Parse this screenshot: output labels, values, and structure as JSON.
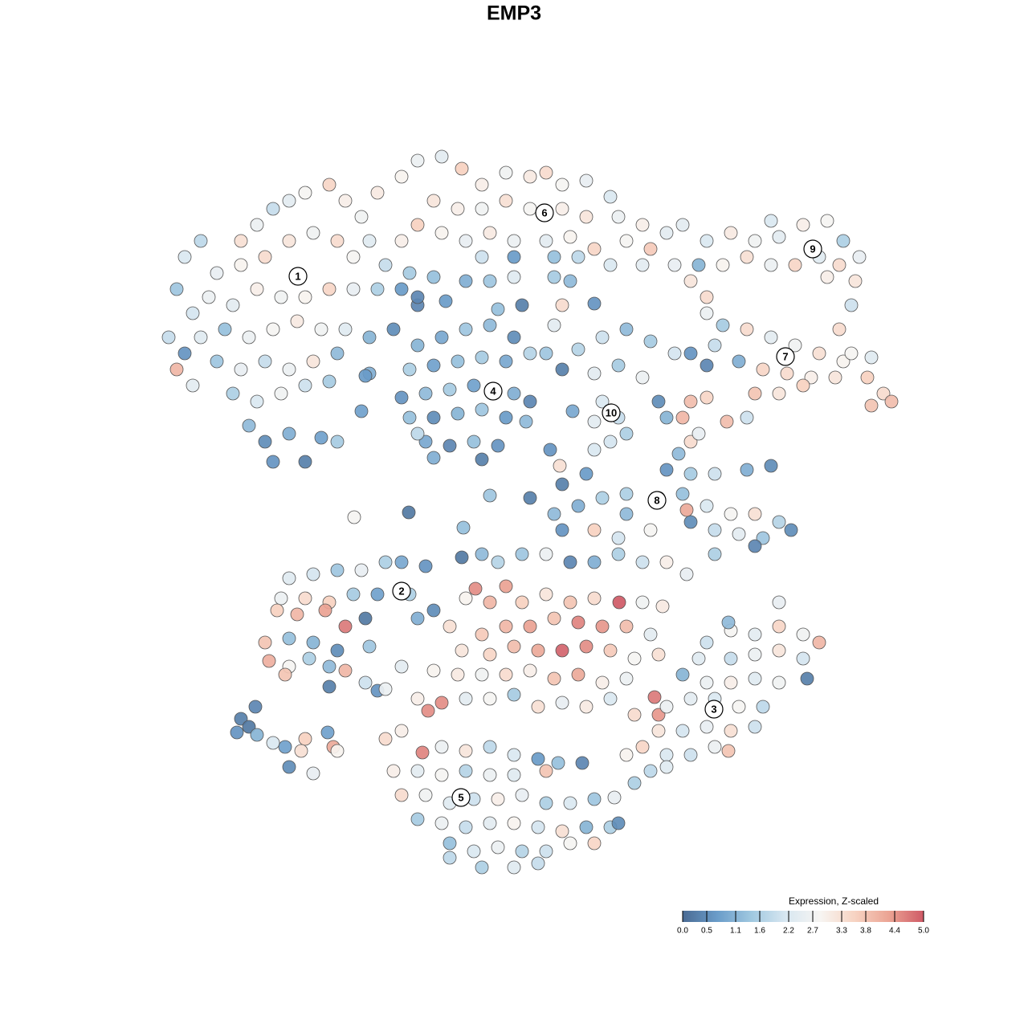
{
  "chart_data": {
    "type": "scatter",
    "title": "EMP3",
    "xlim": [
      0,
      1280
    ],
    "ylim": [
      1280,
      0
    ],
    "x": [
      230,
      250,
      270,
      300,
      320,
      340,
      360,
      380,
      410,
      430,
      450,
      470,
      300,
      330,
      360,
      390,
      420,
      440,
      460,
      480,
      220,
      240,
      260,
      290,
      320,
      350,
      380,
      410,
      440,
      470,
      500,
      520,
      210,
      230,
      250,
      280,
      310,
      340,
      370,
      400,
      430,
      460,
      490,
      220,
      270,
      300,
      330,
      360,
      390,
      420,
      460,
      290,
      320,
      350,
      380,
      410,
      310,
      330,
      360,
      380,
      400,
      420,
      340,
      240,
      500,
      520,
      550,
      575,
      600,
      630,
      660,
      680,
      700,
      730,
      760,
      540,
      570,
      600,
      630,
      660,
      700,
      730,
      770,
      800,
      830,
      520,
      550,
      580,
      610,
      640,
      680,
      710,
      740,
      780,
      810,
      840,
      500,
      600,
      640,
      690,
      720,
      760,
      800,
      860,
      880,
      510,
      540,
      580,
      610,
      640,
      690,
      710,
      520,
      555,
      650,
      620,
      700,
      740,
      690,
      520,
      550,
      580,
      610,
      640,
      510,
      540,
      570,
      600,
      630,
      660,
      500,
      530,
      560,
      590,
      640,
      660,
      510,
      540,
      570,
      600,
      630,
      655,
      530,
      560,
      590,
      620,
      540,
      600,
      455,
      450,
      520,
      680,
      700,
      720,
      750,
      780,
      810,
      840,
      740,
      770,
      800,
      750,
      770,
      740,
      780,
      760,
      713,
      820,
      830,
      880,
      910,
      940,
      970,
      1000,
      1030,
      1050,
      1070,
      900,
      930,
      960,
      990,
      1020,
      1045,
      1065,
      1030,
      870,
      960,
      1060,
      1045,
      850,
      880,
      900,
      930,
      960,
      990,
      1020,
      1050,
      1080,
      1100,
      1110,
      1085,
      1040,
      1010,
      980,
      950,
      920,
      890,
      860,
      880,
      940,
      970,
      1000,
      860,
      880,
      905,
      930,
      850,
      860,
      845,
      870,
      1060,
      1085,
      830,
      860,
      890,
      930,
      960,
      820,
      850,
      880,
      910,
      940,
      970,
      985,
      860,
      890,
      920,
      950,
      890,
      940,
      780,
      855,
      730,
      700,
      685,
      697,
      740,
      610,
      660,
      509,
      441,
      577,
      690,
      720,
      750,
      780,
      810,
      700,
      740,
      770,
      600,
      620,
      650,
      680,
      710,
      740,
      770,
      800,
      830,
      855,
      575,
      530,
      360,
      390,
      420,
      450,
      480,
      500,
      350,
      380,
      410,
      440,
      470,
      510,
      540,
      345,
      370,
      405,
      430,
      455,
      520,
      330,
      360,
      390,
      420,
      460,
      335,
      360,
      385,
      410,
      430,
      355,
      410,
      455,
      470,
      480,
      500,
      300,
      318,
      295,
      310,
      320,
      340,
      355,
      380,
      375,
      360,
      390,
      408,
      415,
      420,
      580,
      592,
      610,
      630,
      650,
      680,
      710,
      740,
      771,
      800,
      825,
      560,
      600,
      630,
      660,
      690,
      720,
      750,
      780,
      810,
      575,
      610,
      640,
      670,
      700,
      730,
      760,
      790,
      820,
      540,
      570,
      600,
      630,
      660,
      690,
      720,
      750,
      780,
      815,
      520,
      550,
      580,
      610,
      640,
      670,
      700,
      730,
      760,
      790,
      820,
      533,
      880,
      910,
      940,
      970,
      1000,
      1020,
      1000,
      970,
      940,
      910,
      870,
      850,
      880,
      910,
      940,
      970,
      1005,
      860,
      890,
      920,
      950,
      830,
      820,
      850,
      880,
      910,
      940,
      800,
      830,
      860,
      890,
      907,
      780,
      810,
      790,
      830,
      970,
      907,
      480,
      500,
      526,
      550,
      580,
      610,
      640,
      670,
      695,
      725,
      490,
      520,
      550,
      580,
      610,
      640,
      680,
      500,
      530,
      560,
      590,
      620,
      650,
      680,
      710,
      740,
      765,
      520,
      550,
      580,
      610,
      640,
      670,
      700,
      730,
      760,
      560,
      590,
      620,
      650,
      680,
      710,
      740,
      600,
      640,
      670,
      770,
      560
    ],
    "y": [
      320,
      300,
      340,
      300,
      280,
      260,
      250,
      240,
      230,
      250,
      270,
      240,
      330,
      320,
      300,
      290,
      300,
      320,
      300,
      330,
      360,
      390,
      370,
      380,
      360,
      370,
      370,
      360,
      360,
      360,
      360,
      380,
      420,
      440,
      420,
      410,
      420,
      410,
      400,
      410,
      410,
      420,
      410,
      460,
      450,
      460,
      450,
      460,
      450,
      440,
      465,
      490,
      500,
      490,
      480,
      475,
      530,
      550,
      540,
      575,
      545,
      550,
      575,
      480,
      220,
      200,
      195,
      210,
      230,
      215,
      220,
      215,
      230,
      225,
      245,
      250,
      260,
      260,
      250,
      260,
      260,
      270,
      270,
      280,
      290,
      280,
      290,
      300,
      290,
      300,
      300,
      295,
      310,
      300,
      310,
      330,
      300,
      320,
      320,
      320,
      320,
      330,
      330,
      350,
      370,
      340,
      345,
      350,
      350,
      345,
      345,
      350,
      370,
      375,
      380,
      385,
      380,
      378,
      405,
      430,
      420,
      410,
      405,
      420,
      460,
      455,
      450,
      445,
      450,
      440,
      495,
      490,
      485,
      480,
      490,
      500,
      520,
      520,
      515,
      510,
      520,
      525,
      550,
      555,
      550,
      555,
      570,
      572,
      468,
      512,
      540,
      440,
      460,
      435,
      420,
      410,
      425,
      440,
      465,
      455,
      470,
      500,
      520,
      525,
      540,
      550,
      512,
      500,
      520,
      300,
      290,
      300,
      295,
      280,
      275,
      300,
      320,
      330,
      320,
      330,
      330,
      320,
      330,
      350,
      345,
      330,
      275,
      380,
      410,
      280,
      390,
      405,
      410,
      420,
      430,
      440,
      450,
      470,
      490,
      500,
      505,
      470,
      470,
      465,
      460,
      450,
      430,
      440,
      455,
      490,
      490,
      480,
      500,
      495,
      525,
      520,
      520,
      550,
      565,
      540,
      440,
      445,
      585,
      590,
      590,
      585,
      580,
      620,
      615,
      630,
      640,
      640,
      650,
      660,
      650,
      660,
      665,
      670,
      690,
      680,
      615,
      635,
      590,
      603,
      560,
      580,
      560,
      617,
      620,
      638,
      644,
      657,
      640,
      630,
      620,
      640,
      660,
      660,
      660,
      670,
      690,
      700,
      690,
      690,
      700,
      700,
      690,
      700,
      700,
      715,
      694,
      705,
      720,
      715,
      710,
      710,
      700,
      700,
      745,
      745,
      750,
      740,
      740,
      740,
      760,
      760,
      765,
      760,
      780,
      770,
      770,
      800,
      795,
      800,
      810,
      805,
      823,
      830,
      820,
      830,
      835,
      840,
      855,
      850,
      860,
      858,
      830,
      895,
      880,
      912,
      905,
      915,
      925,
      930,
      920,
      935,
      955,
      963,
      912,
      930,
      935,
      745,
      733,
      750,
      730,
      750,
      740,
      750,
      745,
      750,
      750,
      755,
      780,
      790,
      780,
      780,
      770,
      775,
      780,
      780,
      790,
      810,
      815,
      805,
      810,
      810,
      805,
      810,
      820,
      815,
      835,
      840,
      840,
      840,
      835,
      845,
      840,
      850,
      845,
      868,
      870,
      875,
      870,
      870,
      865,
      880,
      875,
      880,
      870,
      890,
      890,
      885,
      800,
      785,
      790,
      780,
      790,
      800,
      820,
      810,
      815,
      820,
      820,
      840,
      850,
      850,
      845,
      850,
      845,
      870,
      870,
      880,
      880,
      880,
      910,
      910,
      905,
      910,
      905,
      930,
      940,
      940,
      930,
      935,
      940,
      960,
      975,
      955,
      750,
      775,
      920,
      910,
      937,
      930,
      935,
      930,
      940,
      945,
      950,
      950,
      960,
      960,
      965,
      960,
      965,
      965,
      960,
      990,
      990,
      1000,
      995,
      995,
      990,
      1000,
      1000,
      995,
      993,
      1020,
      1025,
      1030,
      1025,
      1025,
      1030,
      1035,
      1030,
      1030,
      1050,
      1060,
      1055,
      1060,
      1060,
      1050,
      1050,
      1080,
      1080,
      1075,
      1025,
      1068
    ],
    "values": [
      2.2,
      1.8,
      2.5,
      3.3,
      2.6,
      1.9,
      2.4,
      2.8,
      3.5,
      3.0,
      2.7,
      3.1,
      2.9,
      3.4,
      3.2,
      2.7,
      3.4,
      2.8,
      2.3,
      1.9,
      1.4,
      2.1,
      2.6,
      2.4,
      3.0,
      2.7,
      2.9,
      3.5,
      2.5,
      1.6,
      0.7,
      0.4,
      1.9,
      0.6,
      2.3,
      1.3,
      2.6,
      2.8,
      3.1,
      2.7,
      2.3,
      1.1,
      0.5,
      4.0,
      1.4,
      2.5,
      1.9,
      2.6,
      3.2,
      1.2,
      1.0,
      1.6,
      2.2,
      2.7,
      2.0,
      1.5,
      1.2,
      0.5,
      1.0,
      0.3,
      0.8,
      1.5,
      0.6,
      2.4,
      2.9,
      2.6,
      2.4,
      3.6,
      3.0,
      2.7,
      3.1,
      3.4,
      2.8,
      2.5,
      2.2,
      3.2,
      3.0,
      2.7,
      3.3,
      2.8,
      3.0,
      3.2,
      2.6,
      3.0,
      2.4,
      3.6,
      2.9,
      2.5,
      3.1,
      2.6,
      2.4,
      2.9,
      3.5,
      2.8,
      3.7,
      2.5,
      3.0,
      2.0,
      0.7,
      1.3,
      1.8,
      2.2,
      2.4,
      3.2,
      3.4,
      1.5,
      1.3,
      1.0,
      1.4,
      2.3,
      1.5,
      1.2,
      0.4,
      0.7,
      0.3,
      1.3,
      3.4,
      0.6,
      2.4,
      1.1,
      0.9,
      1.4,
      1.2,
      0.5,
      1.6,
      0.8,
      1.3,
      1.5,
      0.9,
      1.7,
      0.6,
      1.2,
      1.5,
      0.8,
      1.0,
      0.4,
      1.3,
      0.5,
      1.1,
      1.4,
      0.7,
      1.2,
      0.9,
      0.4,
      1.3,
      0.6,
      1.0,
      0.3,
      0.7,
      0.8,
      1.8,
      1.4,
      0.3,
      1.7,
      2.0,
      1.2,
      1.5,
      2.1,
      2.4,
      1.5,
      2.6,
      2.2,
      1.9,
      2.4,
      1.6,
      2.1,
      0.9,
      0.5,
      1.1,
      2.2,
      3.1,
      2.7,
      2.4,
      3.0,
      2.8,
      1.6,
      2.5,
      2.9,
      3.3,
      2.6,
      3.5,
      2.3,
      3.4,
      3.2,
      3.0,
      1.1,
      2.2,
      2.0,
      3.4,
      2.4,
      2.6,
      1.5,
      3.4,
      2.4,
      2.7,
      3.3,
      2.9,
      3.6,
      3.4,
      3.9,
      3.8,
      3.2,
      3.0,
      3.4,
      3.5,
      1.0,
      1.9,
      0.6,
      0.4,
      3.8,
      3.2,
      3.6,
      3.9,
      3.5,
      3.9,
      2.0,
      4.0,
      3.4,
      1.2,
      2.5,
      2.8,
      2.3,
      0.6,
      1.5,
      2.0,
      1.0,
      0.5,
      2.7,
      1.3,
      2.2,
      2.8,
      3.3,
      1.7,
      0.5,
      0.5,
      1.9,
      2.4,
      1.4,
      1.6,
      0.4,
      1.6,
      4.2,
      0.7,
      0.3,
      0.6,
      3.3,
      2.2,
      1.4,
      0.3,
      0.2,
      2.8,
      1.3,
      1.2,
      1.0,
      1.6,
      1.2,
      2.8,
      0.6,
      3.6,
      2.1,
      1.2,
      1.7,
      1.4,
      2.6,
      0.4,
      1.0,
      1.6,
      2.0,
      3.0,
      2.5,
      0.2,
      0.6,
      2.3,
      2.1,
      1.4,
      2.5,
      1.6,
      0.9,
      2.6,
      3.4,
      3.6,
      1.5,
      0.8,
      1.6,
      0.5,
      3.6,
      4.0,
      4.3,
      4.7,
      0.2,
      1.0,
      3.8,
      1.3,
      1.1,
      0.5,
      1.4,
      4.1,
      2.8,
      1.6,
      1.2,
      4.0,
      3.8,
      0.3,
      2.0,
      0.6,
      2.6,
      2.4,
      0.3,
      0.4,
      0.6,
      0.2,
      1.1,
      2.2,
      0.8,
      3.6,
      3.3,
      0.5,
      2.5,
      0.8,
      4.2,
      2.9,
      2.9,
      4.5,
      4.0,
      4.3,
      3.6,
      3.2,
      3.8,
      3.4,
      5.0,
      2.7,
      3.1,
      3.3,
      3.7,
      4.0,
      4.3,
      3.8,
      4.6,
      4.4,
      3.9,
      2.4,
      3.2,
      3.5,
      3.9,
      4.2,
      4.9,
      4.5,
      3.7,
      2.8,
      3.3,
      2.9,
      3.1,
      2.7,
      3.4,
      3.0,
      3.8,
      4.2,
      3.0,
      2.6,
      4.7,
      3.0,
      4.5,
      2.4,
      2.8,
      1.5,
      3.3,
      2.5,
      3.1,
      2.2,
      3.4,
      4.4,
      4.5,
      2.0,
      2.8,
      2.4,
      3.5,
      2.7,
      4.0,
      2.1,
      3.2,
      2.6,
      1.9,
      2.3,
      1.1,
      2.6,
      3.0,
      2.3,
      2.7,
      0.3,
      2.4,
      2.2,
      2.8,
      1.8,
      2.6,
      3.2,
      2.1,
      2.5,
      3.3,
      2.0,
      3.5,
      2.2,
      2.0,
      2.6,
      3.8,
      2.9,
      1.8,
      1.6,
      2.3,
      2.5,
      1.2,
      3.4,
      3.0,
      4.6,
      2.6,
      3.2,
      1.8,
      2.2,
      0.7,
      1.3,
      0.4,
      3.0,
      2.4,
      2.8,
      1.7,
      2.6,
      2.3,
      3.8,
      3.4,
      2.7,
      2.3,
      2.0,
      3.0,
      2.5,
      1.6,
      2.2,
      1.4,
      2.5,
      1.5,
      2.6,
      1.9,
      2.4,
      2.9,
      2.1,
      3.3,
      1.1,
      1.6,
      1.3,
      2.2,
      2.6,
      1.7,
      2.0,
      2.8,
      3.5,
      1.6,
      2.3,
      1.9,
      0.5,
      1.8
    ],
    "cluster_labels": [
      {
        "label": "1",
        "x": 371,
        "y": 344
      },
      {
        "label": "2",
        "x": 500,
        "y": 736
      },
      {
        "label": "3",
        "x": 889,
        "y": 883
      },
      {
        "label": "4",
        "x": 614,
        "y": 487
      },
      {
        "label": "5",
        "x": 574,
        "y": 993
      },
      {
        "label": "6",
        "x": 678,
        "y": 265
      },
      {
        "label": "7",
        "x": 978,
        "y": 444
      },
      {
        "label": "8",
        "x": 818,
        "y": 623
      },
      {
        "label": "9",
        "x": 1012,
        "y": 310
      },
      {
        "label": "10",
        "x": 761,
        "y": 514
      }
    ],
    "colorbar": {
      "title": "Expression, Z-scaled",
      "lim": [
        0,
        5
      ],
      "ticks": [
        {
          "value": 0,
          "label": "0.0"
        },
        0.5,
        1.1,
        1.6,
        2.2,
        2.7,
        3.3,
        3.8,
        4.4,
        {
          "value": 5,
          "label": "5.0"
        }
      ],
      "colors": [
        "#4a6b94",
        "#6a9cc9",
        "#a0c8e0",
        "#d8e7f1",
        "#f7f5f2",
        "#f7d3c2",
        "#eba393",
        "#cf5a66"
      ]
    }
  }
}
